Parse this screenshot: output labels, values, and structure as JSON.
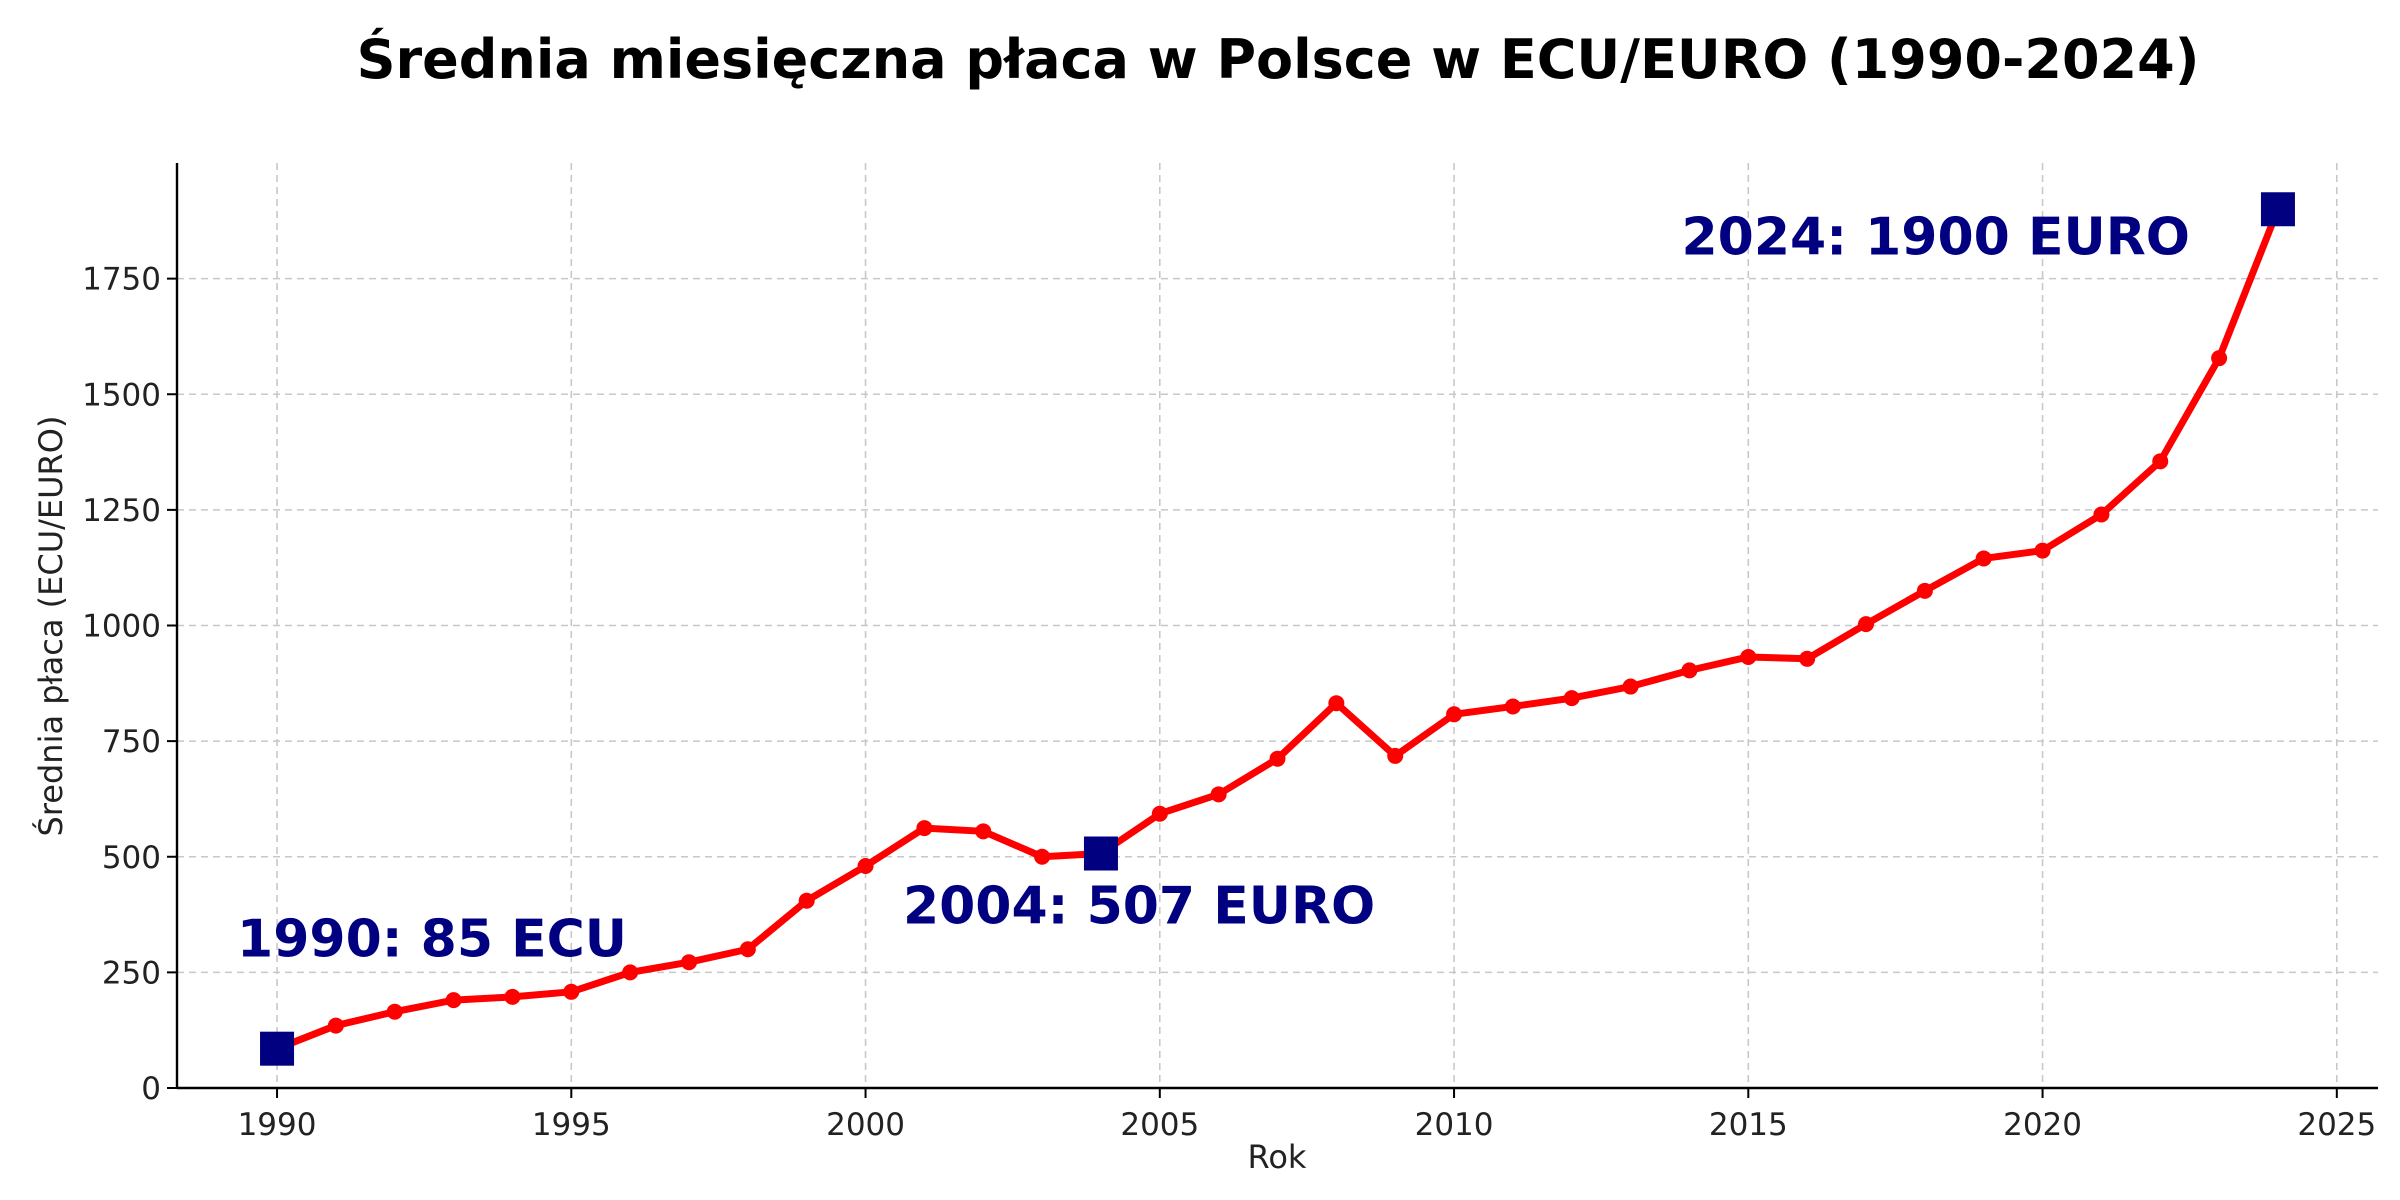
{
  "chart_data": {
    "type": "line",
    "title": "Średnia miesięczna płaca w Polsce w ECU/EURO (1990-2024)",
    "xlabel": "Rok",
    "ylabel": "Średnia płaca (ECU/EURO)",
    "xlim": [
      1988.3,
      2025.7
    ],
    "ylim": [
      0,
      2000
    ],
    "xticks": [
      1990,
      1995,
      2000,
      2005,
      2010,
      2015,
      2020,
      2025
    ],
    "yticks": [
      0,
      250,
      500,
      750,
      1000,
      1250,
      1500,
      1750
    ],
    "grid": true,
    "line_color": "#ff0000",
    "highlight_color": "#000080",
    "series": [
      {
        "x": [
          1990,
          1991,
          1992,
          1993,
          1994,
          1995,
          1996,
          1997,
          1998,
          1999,
          2000,
          2001,
          2002,
          2003,
          2004,
          2005,
          2006,
          2007,
          2008,
          2009,
          2010,
          2011,
          2012,
          2013,
          2014,
          2015,
          2016,
          2017,
          2018,
          2019,
          2020,
          2021,
          2022,
          2023,
          2024
        ],
        "values": [
          85,
          135,
          165,
          190,
          197,
          208,
          250,
          272,
          300,
          405,
          480,
          562,
          555,
          500,
          507,
          593,
          635,
          712,
          832,
          718,
          808,
          825,
          843,
          868,
          903,
          932,
          928,
          1003,
          1075,
          1145,
          1162,
          1240,
          1355,
          1578,
          1900
        ]
      }
    ],
    "highlights": [
      {
        "x": 1990,
        "y": 85,
        "label": "1990: 85 ECU"
      },
      {
        "x": 2004,
        "y": 507,
        "label": "2004: 507 EURO"
      },
      {
        "x": 2024,
        "y": 1900,
        "label": "2024: 1900 EURO"
      }
    ]
  }
}
